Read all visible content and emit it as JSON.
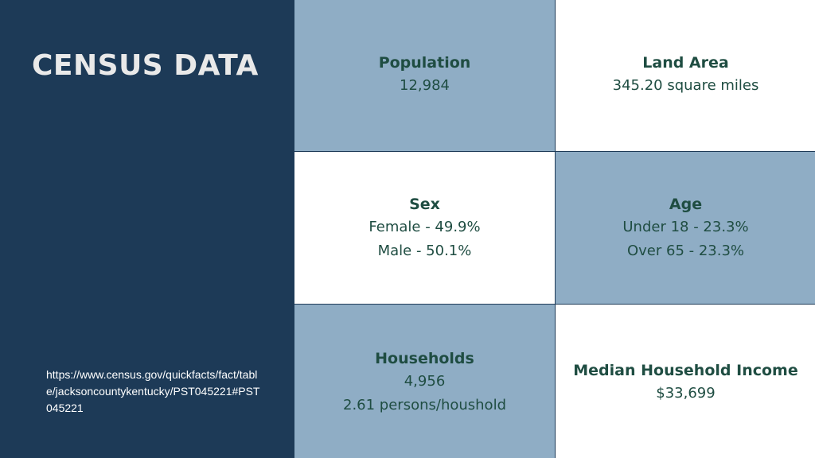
{
  "title": "CENSUS DATA",
  "source_url": "https://www.census.gov/quickfacts/fact/table/jacksoncountykentucky/PST045221#PST045221",
  "colors": {
    "panel": "#1d3a57",
    "blue_cell": "#8fadc5",
    "text": "#1f4d42"
  },
  "cells": {
    "population": {
      "heading": "Population",
      "lines": [
        "12,984"
      ]
    },
    "land_area": {
      "heading": "Land Area",
      "lines": [
        "345.20 square miles"
      ]
    },
    "sex": {
      "heading": "Sex",
      "lines": [
        "Female - 49.9%",
        "Male - 50.1%"
      ]
    },
    "age": {
      "heading": "Age",
      "lines": [
        "Under 18 - 23.3%",
        "Over 65 - 23.3%"
      ]
    },
    "households": {
      "heading": "Households",
      "lines": [
        "4,956",
        "2.61 persons/houshold"
      ]
    },
    "income": {
      "heading": "Median Household Income",
      "lines": [
        "$33,699"
      ]
    }
  }
}
